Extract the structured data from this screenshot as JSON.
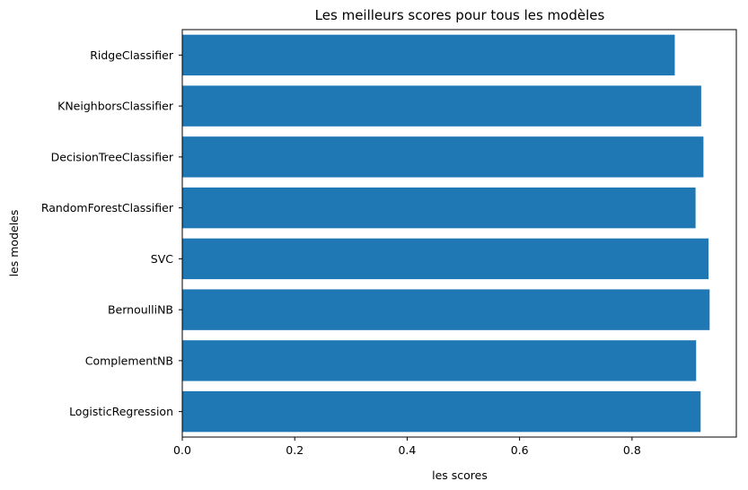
{
  "chart_data": {
    "type": "bar",
    "orientation": "horizontal",
    "title": "Les meilleurs scores pour tous les modèles",
    "xlabel": "les scores",
    "ylabel": "les modeles",
    "xlim": [
      0,
      0.9855
    ],
    "xticks": [
      0.0,
      0.2,
      0.4,
      0.6,
      0.8
    ],
    "xtick_labels": [
      "0.0",
      "0.2",
      "0.4",
      "0.6",
      "0.8"
    ],
    "grid": false,
    "bar_color": "#1f77b4",
    "categories": [
      "LogisticRegression",
      "ComplementNB",
      "BernoulliNB",
      "SVC",
      "RandomForestClassifier",
      "DecisionTreeClassifier",
      "KNeighborsClassifier",
      "RidgeClassifier"
    ],
    "values": [
      0.922,
      0.914,
      0.938,
      0.936,
      0.913,
      0.927,
      0.923,
      0.876
    ]
  }
}
